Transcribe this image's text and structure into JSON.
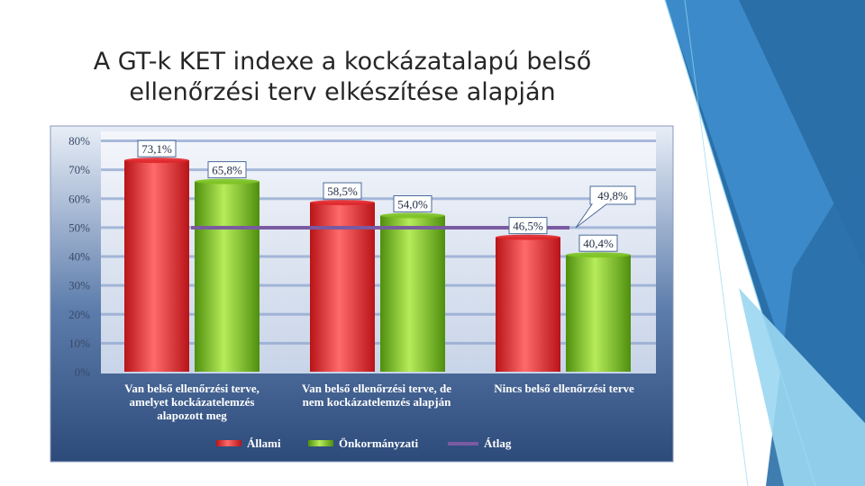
{
  "slide": {
    "title_lines": [
      "A GT-k KET indexe a kockázatalapú belső",
      "ellenőrzési terv elkészítése alapján"
    ]
  },
  "chart_data": {
    "type": "bar",
    "title": "",
    "xlabel": "",
    "ylabel": "",
    "ylim": [
      0,
      80
    ],
    "y_ticks": [
      0,
      10,
      20,
      30,
      40,
      50,
      60,
      70,
      80
    ],
    "y_tick_labels": [
      "0%",
      "10%",
      "20%",
      "30%",
      "40%",
      "50%",
      "60%",
      "70%",
      "80%"
    ],
    "categories": [
      [
        "Van belső ellenőrzési terve,",
        "amelyet kockázatelemzés",
        "alapozott meg"
      ],
      [
        "Van belső ellenőrzési terve, de",
        "nem kockázatelemzés alapján"
      ],
      [
        "Nincs belső ellenőrzési terve"
      ]
    ],
    "series": [
      {
        "name": "Állami",
        "values": [
          73.1,
          58.5,
          46.5
        ],
        "labels": [
          "73,1%",
          "58,5%",
          "46,5%"
        ],
        "color": "#e0262a"
      },
      {
        "name": "Önkormányzati",
        "values": [
          65.8,
          54.0,
          40.4
        ],
        "labels": [
          "65,8%",
          "54,0%",
          "40,4%"
        ],
        "color": "#7cc221"
      }
    ],
    "average": {
      "name": "Átlag",
      "value": 49.8,
      "label": "49,8%",
      "color": "#7a5aa0"
    },
    "grid": true,
    "legend": "bottom"
  }
}
